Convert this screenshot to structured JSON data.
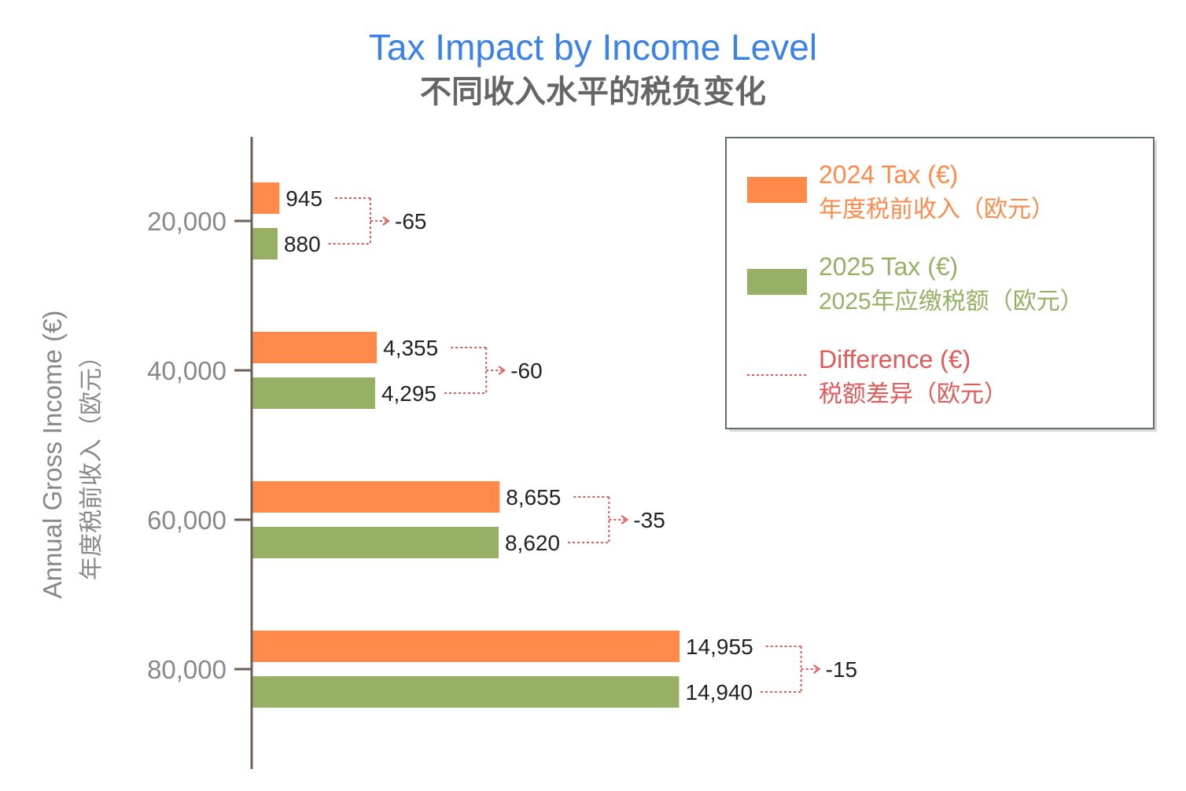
{
  "chart_data": {
    "type": "bar",
    "orientation": "horizontal",
    "title": "Tax Impact by Income Level",
    "subtitle": "不同收入水平的税负变化",
    "ylabel": "Annual Gross Income (€)",
    "ylabel_cn": "年度税前收入（欧元）",
    "xlabel": "",
    "xlim": [
      0,
      16500
    ],
    "categories": [
      "20,000",
      "40,000",
      "60,000",
      "80,000"
    ],
    "series": [
      {
        "name": "2024 Tax (€)",
        "name_cn": "年度税前收入（欧元）",
        "color": "#FF8A4C",
        "values": [
          945,
          4355,
          8655,
          14955
        ],
        "labels": [
          "945",
          "4,355",
          "8,655",
          "14,955"
        ]
      },
      {
        "name": "2025 Tax (€)",
        "name_cn": "2025年应缴税额（欧元）",
        "color": "#96B066",
        "values": [
          880,
          4295,
          8620,
          14940
        ],
        "labels": [
          "880",
          "4,295",
          "8,620",
          "14,940"
        ]
      }
    ],
    "difference": {
      "name": "Difference (€)",
      "name_cn": "税额差异（欧元）",
      "color": "#E05A5A",
      "values": [
        -65,
        -60,
        -35,
        -15
      ],
      "labels": [
        "-65",
        "-60",
        "-35",
        "-15"
      ]
    },
    "legend": "top-right",
    "grid": false
  },
  "colors": {
    "title": "#3B82E6",
    "subtitle": "#666666",
    "axis": "#705F55",
    "tick_text": "#888888",
    "label_text": "#222222",
    "legend_border": "#5F6E66"
  }
}
